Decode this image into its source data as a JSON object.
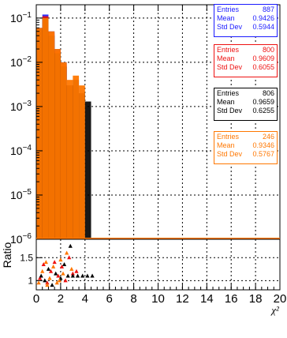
{
  "chart_data": {
    "type": "bar",
    "x_axis": {
      "label": "χ²",
      "range": [
        0,
        20
      ],
      "tick_labels": [
        "0",
        "2",
        "4",
        "6",
        "8",
        "10",
        "12",
        "14",
        "16",
        "18",
        "20"
      ]
    },
    "top_panel": {
      "y_scale": "log",
      "y_range": [
        1e-06,
        0.2
      ],
      "y_tick_labels": [
        {
          "value": 1e-06,
          "mant": "10",
          "exp": "−6"
        },
        {
          "value": 1e-05,
          "mant": "10",
          "exp": "−5"
        },
        {
          "value": 0.0001,
          "mant": "10",
          "exp": "−4"
        },
        {
          "value": 0.001,
          "mant": "10",
          "exp": "−3"
        },
        {
          "value": 0.01,
          "mant": "10",
          "exp": "−2"
        },
        {
          "value": 0.1,
          "mant": "10",
          "exp": "−1"
        }
      ],
      "grid": true,
      "bin_width": 0.5,
      "series": [
        {
          "color": "#1a1aff",
          "bins": [
            [
              0.0,
              0.06
            ],
            [
              0.5,
              0.12
            ],
            [
              1.0,
              0.05
            ],
            [
              1.5,
              0.02
            ],
            [
              2.0,
              0.01
            ],
            [
              2.5,
              0.003
            ]
          ]
        },
        {
          "color": "#ee1111",
          "bins": [
            [
              0.0,
              0.05
            ],
            [
              0.5,
              0.11
            ],
            [
              1.0,
              0.045
            ],
            [
              1.5,
              0.018
            ],
            [
              2.0,
              0.009
            ],
            [
              2.5,
              0.003
            ]
          ]
        },
        {
          "color": "#000000",
          "bins": [
            [
              0.0,
              0.055
            ],
            [
              0.5,
              0.1
            ],
            [
              1.0,
              0.04
            ],
            [
              1.5,
              0.016
            ],
            [
              2.0,
              0.008
            ],
            [
              2.5,
              0.003
            ],
            [
              3.0,
              0.004
            ],
            [
              3.5,
              0.002
            ],
            [
              4.0,
              0.0013
            ]
          ]
        },
        {
          "color": "#ff7700",
          "bins": [
            [
              0.0,
              0.06
            ],
            [
              0.5,
              0.1
            ],
            [
              1.0,
              0.05
            ],
            [
              1.5,
              0.02
            ],
            [
              2.0,
              0.01
            ],
            [
              2.5,
              0.004
            ],
            [
              3.0,
              0.005
            ],
            [
              3.5,
              0.003
            ]
          ]
        }
      ]
    },
    "bottom_panel": {
      "ylabel": "Ratio",
      "y_range": [
        0.8,
        1.9
      ],
      "y_tick_labels": [
        "1",
        "1.5"
      ],
      "grid": true,
      "series": [
        {
          "color": "#ee1111",
          "marker": "triangle",
          "points": [
            [
              0.3,
              1.05
            ],
            [
              0.6,
              1.35
            ],
            [
              0.9,
              0.95
            ],
            [
              1.2,
              1.2
            ],
            [
              1.5,
              1.4
            ],
            [
              1.8,
              1.1
            ],
            [
              2.1,
              1.3
            ],
            [
              2.4,
              1.0
            ],
            [
              2.7,
              1.5
            ],
            [
              3.0,
              1.15
            ],
            [
              3.3,
              1.2
            ]
          ]
        },
        {
          "color": "#000000",
          "marker": "triangle",
          "points": [
            [
              0.4,
              1.1
            ],
            [
              0.7,
              1.0
            ],
            [
              1.0,
              1.25
            ],
            [
              1.3,
              0.9
            ],
            [
              1.6,
              1.15
            ],
            [
              2.0,
              1.05
            ],
            [
              2.3,
              1.35
            ],
            [
              2.6,
              1.1
            ],
            [
              3.0,
              1.1
            ],
            [
              3.4,
              1.1
            ],
            [
              3.8,
              1.1
            ],
            [
              4.2,
              1.1
            ],
            [
              4.6,
              1.1
            ],
            [
              2.8,
              1.75
            ]
          ]
        },
        {
          "color": "#ff7700",
          "marker": "triangle",
          "points": [
            [
              0.2,
              0.95
            ],
            [
              0.5,
              1.2
            ],
            [
              0.8,
              1.4
            ],
            [
              1.1,
              1.05
            ],
            [
              1.4,
              1.3
            ],
            [
              1.7,
              0.95
            ],
            [
              2.0,
              1.45
            ],
            [
              2.2,
              1.15
            ],
            [
              2.5,
              1.6
            ],
            [
              2.9,
              1.25
            ],
            [
              0.9,
              0.9
            ],
            [
              1.9,
              1.0
            ]
          ]
        }
      ]
    },
    "stat_boxes": [
      {
        "color": "#1a1aff",
        "entries_label": "Entries",
        "entries": "887",
        "mean_label": "Mean",
        "mean": "0.9426",
        "std_label": "Std Dev",
        "std": "0.5944"
      },
      {
        "color": "#ee1111",
        "entries_label": "Entries",
        "entries": "800",
        "mean_label": "Mean",
        "mean": "0.9609",
        "std_label": "Std Dev",
        "std": "0.6055"
      },
      {
        "color": "#000000",
        "entries_label": "Entries",
        "entries": "806",
        "mean_label": "Mean",
        "mean": "0.9659",
        "std_label": "Std Dev",
        "std": "0.6255"
      },
      {
        "color": "#ff7700",
        "entries_label": "Entries",
        "entries": "246",
        "mean_label": "Mean",
        "mean": "0.9346",
        "std_label": "Std Dev",
        "std": "0.5767"
      }
    ]
  }
}
